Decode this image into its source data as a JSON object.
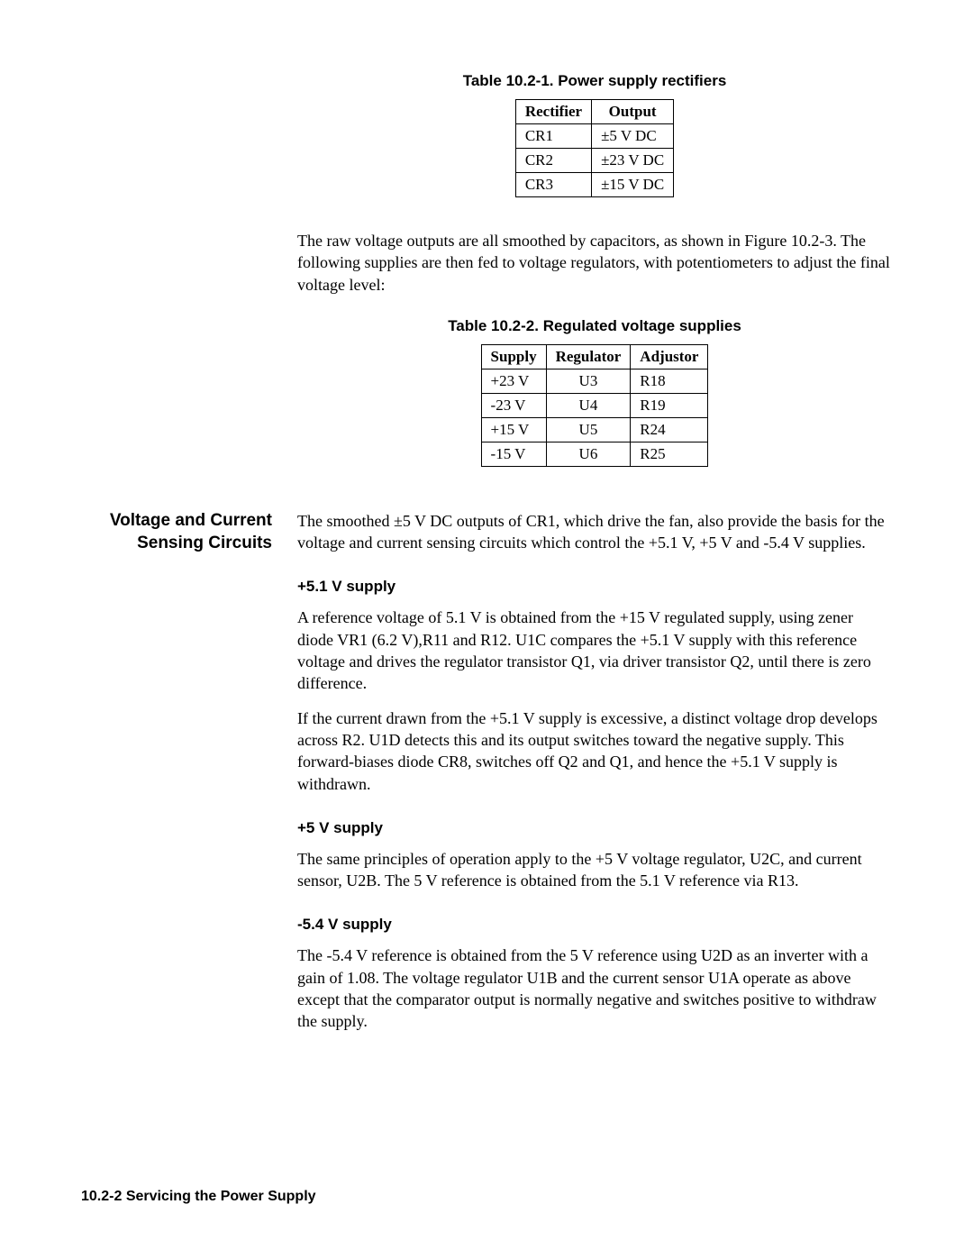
{
  "table1": {
    "title": "Table 10.2-1. Power supply rectifiers",
    "columns": [
      "Rectifier",
      "Output"
    ],
    "rows": [
      [
        "CR1",
        "±5 V DC"
      ],
      [
        "CR2",
        "±23 V DC"
      ],
      [
        "CR3",
        "±15 V DC"
      ]
    ]
  },
  "para1": "The raw voltage outputs are all smoothed by capacitors, as shown in Figure 10.2-3. The following supplies are then fed to voltage regulators, with potentiometers to adjust the final voltage level:",
  "table2": {
    "title": "Table 10.2-2. Regulated voltage supplies",
    "columns": [
      "Supply",
      "Regulator",
      "Adjustor"
    ],
    "rows": [
      [
        "+23 V",
        "U3",
        "R18"
      ],
      [
        "-23 V",
        "U4",
        "R19"
      ],
      [
        "+15 V",
        "U5",
        "R24"
      ],
      [
        "-15 V",
        "U6",
        "R25"
      ]
    ]
  },
  "section_heading_line1": "Voltage and Current",
  "section_heading_line2": "Sensing Circuits",
  "section_intro": "The smoothed ±5 V DC outputs of CR1, which drive the fan, also provide the basis for the voltage and current sensing circuits which control the +5.1 V, +5 V and -5.4 V supplies.",
  "sub1": {
    "heading": "+5.1 V supply",
    "p1": "A reference voltage of 5.1 V is obtained from the +15 V regulated supply, using zener diode VR1 (6.2 V),R11 and R12. U1C compares the +5.1 V supply with this reference voltage and drives the regulator transistor Q1, via driver transistor Q2, until there is zero difference.",
    "p2": "If the current drawn from the +5.1 V supply is excessive, a distinct voltage drop develops across R2. U1D detects this and its output switches toward the negative supply. This forward-biases diode CR8, switches off Q2 and Q1, and hence the +5.1 V supply is withdrawn."
  },
  "sub2": {
    "heading": "+5 V supply",
    "p1": "The same principles of operation apply to the +5 V voltage regulator, U2C, and current sensor, U2B. The 5 V reference is obtained from the 5.1 V reference via R13."
  },
  "sub3": {
    "heading": "-5.4 V supply",
    "p1": "The -5.4 V reference is obtained from the 5 V reference using U2D as an inverter with a gain of 1.08. The voltage regulator U1B and the current sensor U1A operate as above except that the comparator output is normally negative and switches positive to withdraw the supply."
  },
  "footer": "10.2-2  Servicing the Power Supply"
}
